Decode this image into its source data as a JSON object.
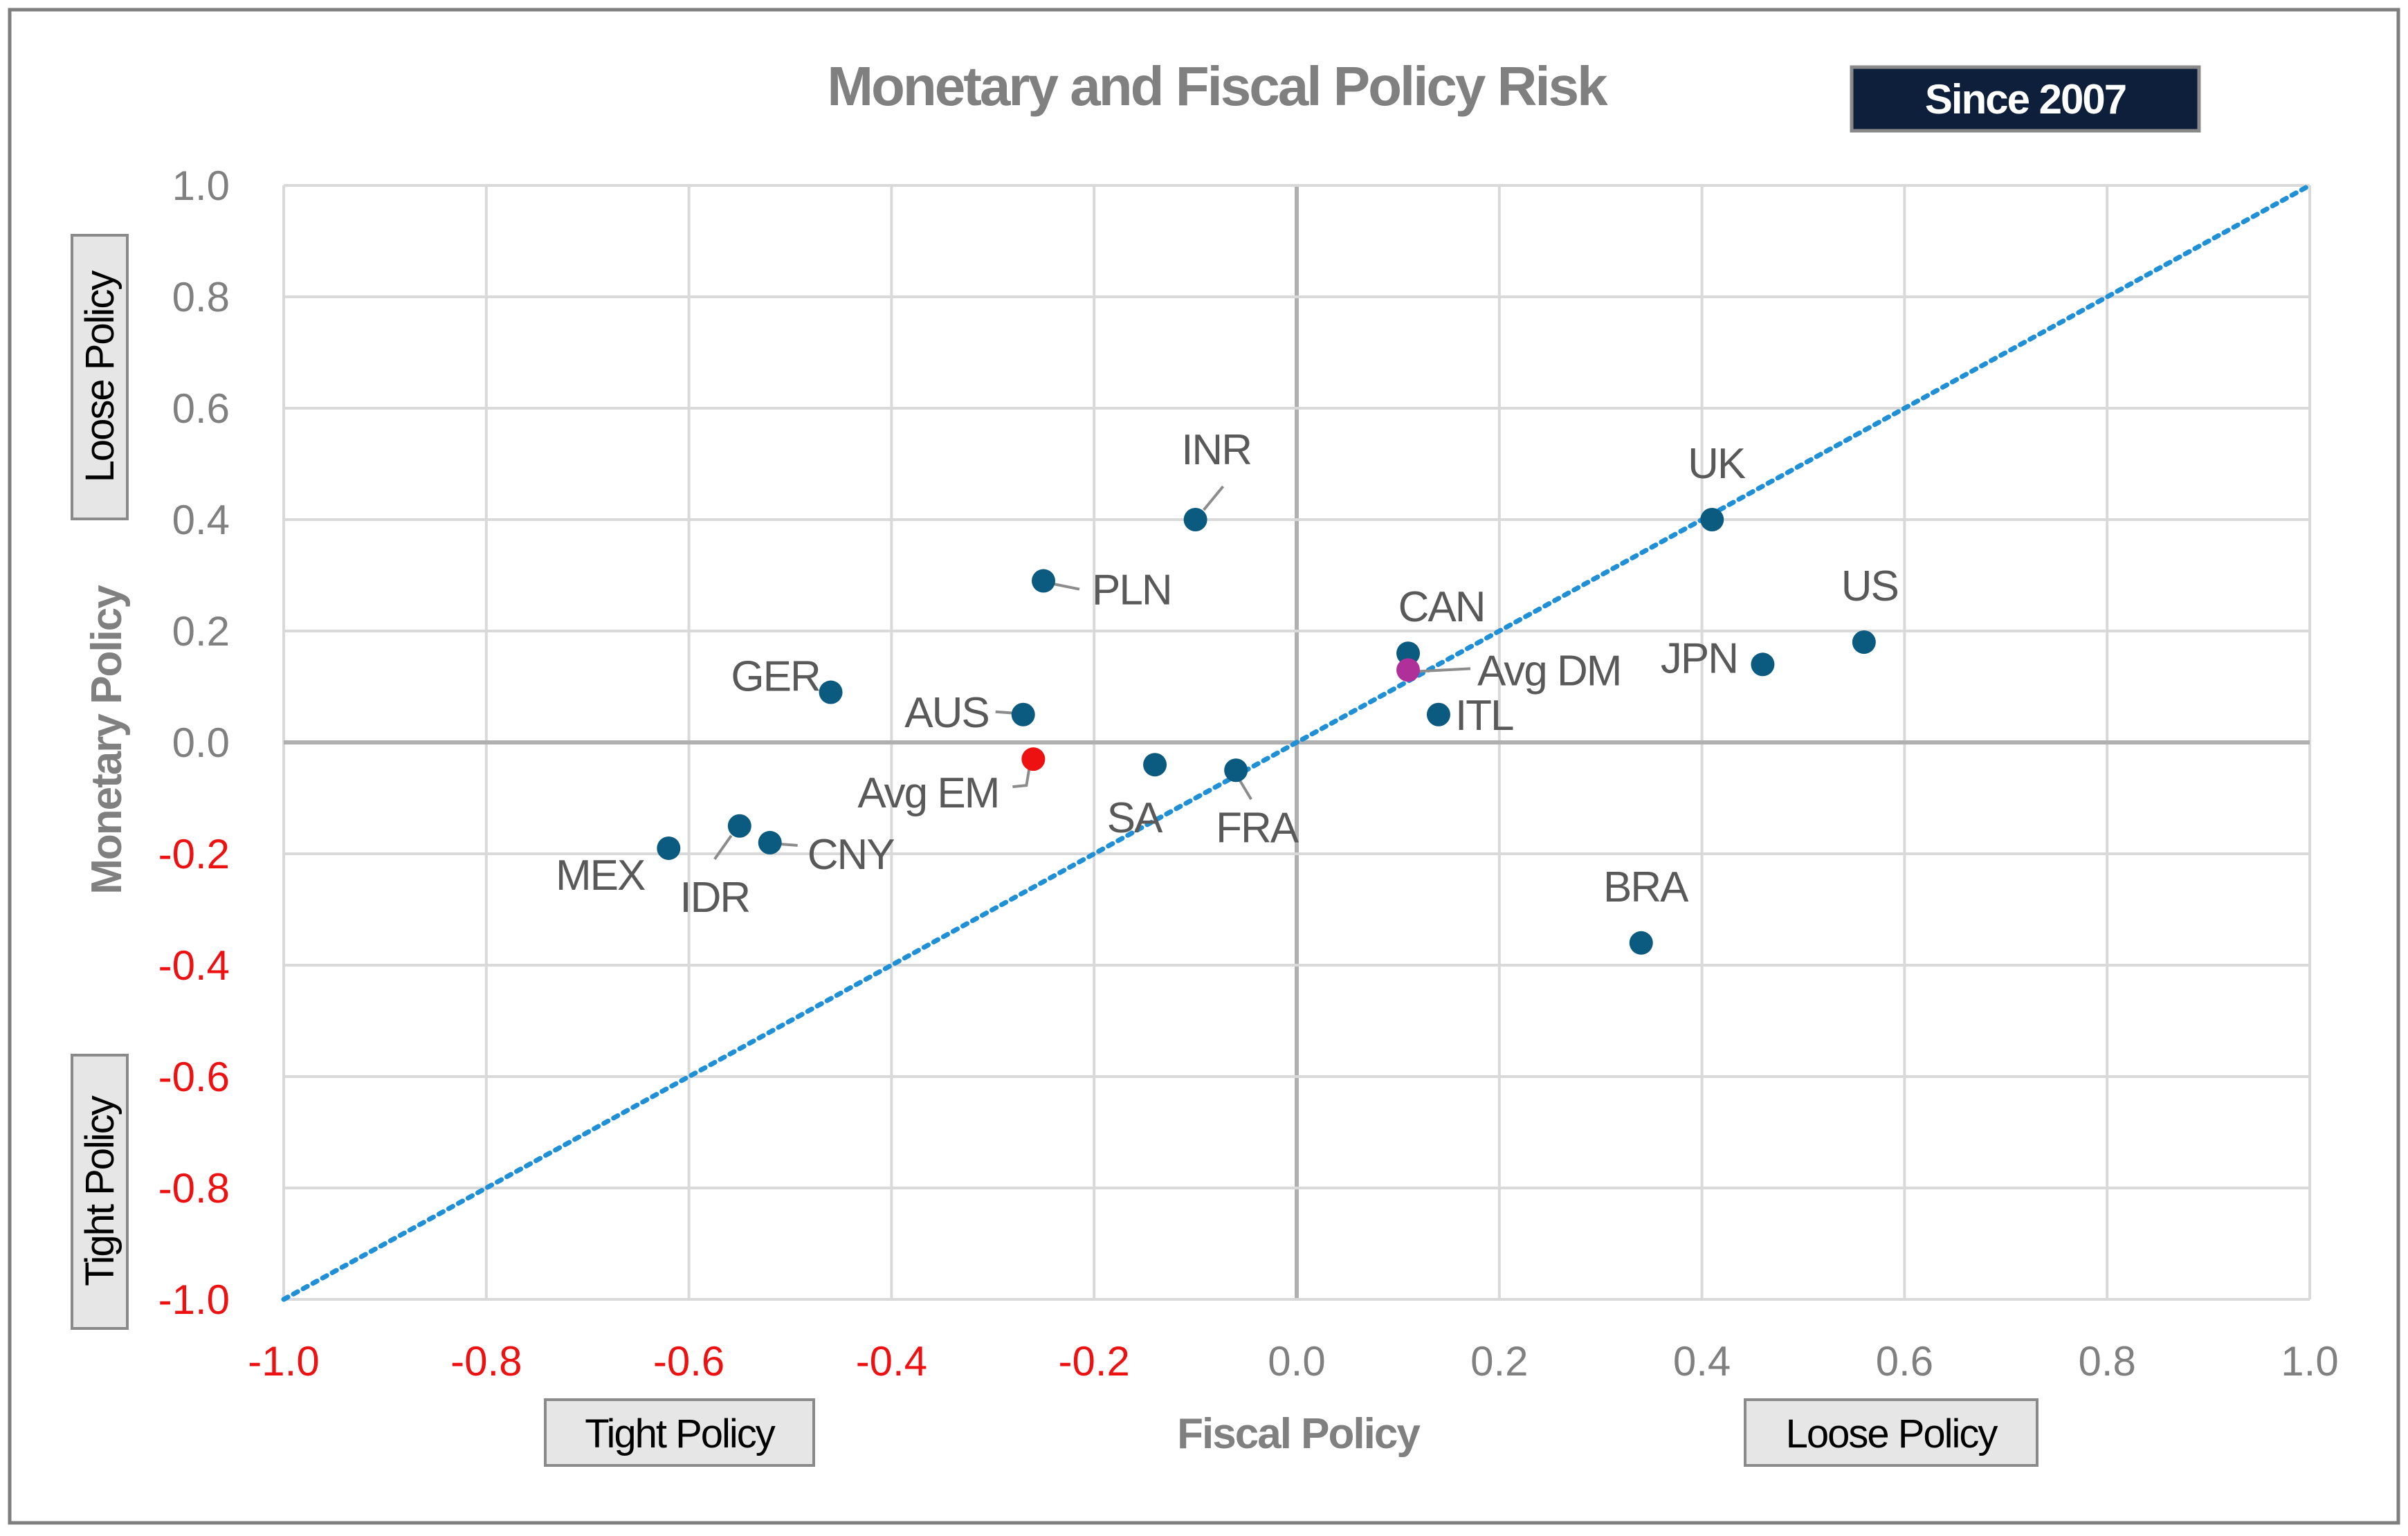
{
  "chart_data": {
    "type": "scatter",
    "title": "Monetary and Fiscal Policy Risk",
    "badge": "Since 2007",
    "xlabel": "Fiscal Policy",
    "ylabel": "Monetary Policy",
    "xlim": [
      -1.0,
      1.0
    ],
    "ylim": [
      -1.0,
      1.0
    ],
    "x_ticks": [
      "-1.0",
      "-0.8",
      "-0.6",
      "-0.4",
      "-0.2",
      "0.0",
      "0.2",
      "0.4",
      "0.6",
      "0.8",
      "1.0"
    ],
    "y_ticks": [
      "1.0",
      "0.8",
      "0.6",
      "0.4",
      "0.2",
      "0.0",
      "-0.2",
      "-0.4",
      "-0.6",
      "-0.8",
      "-1.0"
    ],
    "x_tight_label": "Tight Policy",
    "x_loose_label": "Loose Policy",
    "y_loose_label": "Loose Policy",
    "y_tight_label": "Tight Policy",
    "grid": true,
    "reference_line": {
      "type": "y=x",
      "style": "dotted"
    },
    "points": [
      {
        "label": "INR",
        "x": -0.1,
        "y": 0.4,
        "group": "country"
      },
      {
        "label": "UK",
        "x": 0.41,
        "y": 0.4,
        "group": "country"
      },
      {
        "label": "PLN",
        "x": -0.25,
        "y": 0.29,
        "group": "country"
      },
      {
        "label": "US",
        "x": 0.56,
        "y": 0.18,
        "group": "country"
      },
      {
        "label": "CAN",
        "x": 0.11,
        "y": 0.16,
        "group": "country"
      },
      {
        "label": "JPN",
        "x": 0.46,
        "y": 0.14,
        "group": "country"
      },
      {
        "label": "Avg DM",
        "x": 0.11,
        "y": 0.13,
        "group": "avg_dm"
      },
      {
        "label": "GER",
        "x": -0.46,
        "y": 0.09,
        "group": "country"
      },
      {
        "label": "ITL",
        "x": 0.14,
        "y": 0.05,
        "group": "country"
      },
      {
        "label": "AUS",
        "x": -0.27,
        "y": 0.05,
        "group": "country"
      },
      {
        "label": "Avg EM",
        "x": -0.26,
        "y": -0.03,
        "group": "avg_em"
      },
      {
        "label": "SA",
        "x": -0.14,
        "y": -0.04,
        "group": "country"
      },
      {
        "label": "FRA",
        "x": -0.06,
        "y": -0.05,
        "group": "country"
      },
      {
        "label": "IDR",
        "x": -0.55,
        "y": -0.15,
        "group": "country"
      },
      {
        "label": "CNY",
        "x": -0.52,
        "y": -0.18,
        "group": "country"
      },
      {
        "label": "MEX",
        "x": -0.62,
        "y": -0.19,
        "group": "country"
      },
      {
        "label": "BRA",
        "x": 0.34,
        "y": -0.36,
        "group": "country"
      }
    ]
  },
  "colors": {
    "country_marker": "#0b5a80",
    "avg_dm_marker": "#b0309a",
    "avg_em_marker": "#ee1111",
    "negative_tick": "#ee1111",
    "positive_tick": "#808080",
    "reference_line": "#1f8fd6",
    "grid": "#d9d9d9",
    "zero_axis": "#b0b0b0",
    "badge_bg": "#0d1f3a",
    "label_box_bg": "#e6e6e6"
  }
}
